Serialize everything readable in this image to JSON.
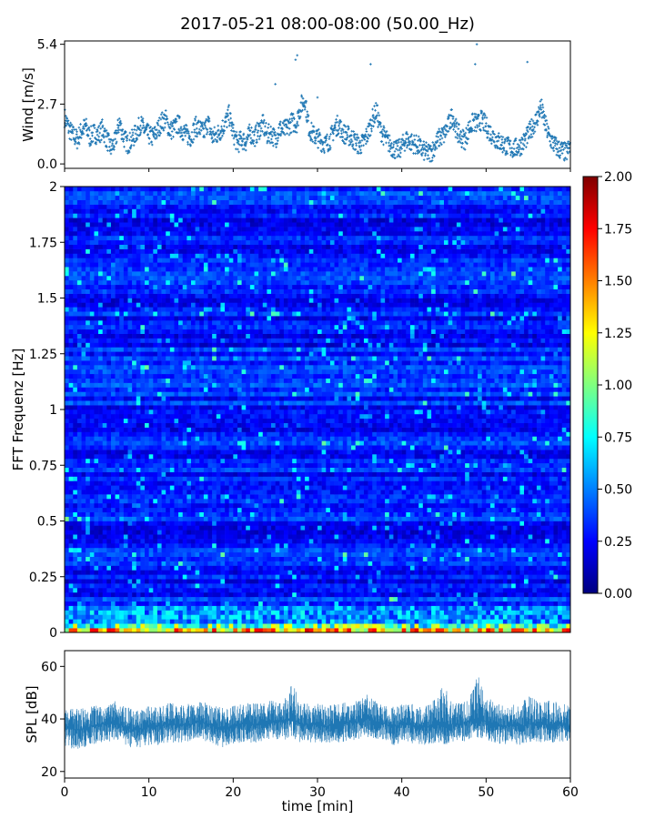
{
  "figure": {
    "title": "2017-05-21 08:00-08:00 (50.00_Hz)"
  },
  "chart_data": [
    {
      "id": "wind",
      "type": "scatter",
      "ylabel": "Wind [m/s]",
      "xlim": [
        0,
        60
      ],
      "ylim": [
        -0.2,
        5.55
      ],
      "yticks": [
        0.0,
        2.7,
        5.4
      ],
      "ytick_labels": [
        "0.0",
        "2.7",
        "5.4"
      ],
      "marker_color": "#1f77b4",
      "x": [
        0,
        0.5,
        1,
        1.5,
        2,
        2.5,
        3,
        3.5,
        4,
        4.5,
        5,
        5.5,
        6,
        6.5,
        7,
        7.5,
        8,
        8.5,
        9,
        9.5,
        10,
        10.5,
        11,
        11.5,
        12,
        12.5,
        13,
        13.5,
        14,
        14.5,
        15,
        15.5,
        16,
        16.5,
        17,
        17.5,
        18,
        18.5,
        19,
        19.5,
        20,
        20.5,
        21,
        21.5,
        22,
        22.5,
        23,
        23.5,
        24,
        24.5,
        25,
        25.5,
        26,
        26.5,
        27,
        27.5,
        28,
        28.5,
        29,
        29.5,
        30,
        30.5,
        31,
        31.5,
        32,
        32.5,
        33,
        33.5,
        34,
        34.5,
        35,
        35.5,
        36,
        36.5,
        37,
        37.5,
        38,
        38.5,
        39,
        39.5,
        40,
        40.5,
        41,
        41.5,
        42,
        42.5,
        43,
        43.5,
        44,
        44.5,
        45,
        45.5,
        46,
        46.5,
        47,
        47.5,
        48,
        48.5,
        49,
        49.5,
        50,
        50.5,
        51,
        51.5,
        52,
        52.5,
        53,
        53.5,
        54,
        54.5,
        55,
        55.5,
        56,
        56.5,
        57,
        57.5,
        58,
        58.5,
        59,
        59.5,
        60
      ],
      "y": [
        2.1,
        1.6,
        1.3,
        1.1,
        1.5,
        1.7,
        1.2,
        1.4,
        1.3,
        1.6,
        1.1,
        0.7,
        1.0,
        1.9,
        1.2,
        0.9,
        1.1,
        1.4,
        1.8,
        1.5,
        1.3,
        1.2,
        1.5,
        1.9,
        2.0,
        1.5,
        1.6,
        1.8,
        1.5,
        1.3,
        1.2,
        1.7,
        1.6,
        1.4,
        1.9,
        1.2,
        1.3,
        1.5,
        1.8,
        2.2,
        1.4,
        0.9,
        1.1,
        1.0,
        1.4,
        1.2,
        1.5,
        1.8,
        1.3,
        1.4,
        1.1,
        1.6,
        1.5,
        1.7,
        1.9,
        1.8,
        2.6,
        2.9,
        1.6,
        1.3,
        1.2,
        1.0,
        0.9,
        1.1,
        1.6,
        1.8,
        1.4,
        1.3,
        1.2,
        1.0,
        0.8,
        1.0,
        1.4,
        2.0,
        2.4,
        1.5,
        1.2,
        0.9,
        0.7,
        0.6,
        0.8,
        1.1,
        1.0,
        0.9,
        0.8,
        0.6,
        0.5,
        0.5,
        0.9,
        1.2,
        1.3,
        1.7,
        2.2,
        1.5,
        1.2,
        1.1,
        1.6,
        1.9,
        1.8,
        2.0,
        1.7,
        1.4,
        1.2,
        1.0,
        0.9,
        0.8,
        0.7,
        0.7,
        0.8,
        1.0,
        1.3,
        1.7,
        2.0,
        2.6,
        1.8,
        1.2,
        0.9,
        0.7,
        0.6,
        0.5,
        0.8
      ]
    },
    {
      "id": "spectrogram",
      "type": "heatmap",
      "ylabel": "FFT Frequenz [Hz]",
      "xlim": [
        0,
        60
      ],
      "ylim": [
        0,
        2
      ],
      "yticks": [
        0,
        0.25,
        0.5,
        0.75,
        1,
        1.25,
        1.5,
        1.75,
        2
      ],
      "ytick_labels": [
        "0",
        "0.25",
        "0.5",
        "0.75",
        "1",
        "1.25",
        "1.5",
        "1.75",
        "2"
      ],
      "colormap": "jet",
      "zlim": [
        0,
        2
      ],
      "colorbar_ticks": [
        0.0,
        0.25,
        0.5,
        0.75,
        1.0,
        1.25,
        1.5,
        1.75,
        2.0
      ],
      "colorbar_tick_labels": [
        "0.00",
        "0.25",
        "0.50",
        "0.75",
        "1.00",
        "1.25",
        "1.50",
        "1.75",
        "2.00"
      ],
      "n_time_bins": 120,
      "n_freq_bins": 100,
      "typical_level": 0.25,
      "low_frequency_level": 1.3
    },
    {
      "id": "spl",
      "type": "line",
      "ylabel": "SPL [dB]",
      "xlabel": "time [min]",
      "xlim": [
        0,
        60
      ],
      "ylim": [
        17.5,
        66
      ],
      "xticks": [
        0,
        10,
        20,
        30,
        40,
        50,
        60
      ],
      "xtick_labels": [
        "0",
        "10",
        "20",
        "30",
        "40",
        "50",
        "60"
      ],
      "yticks": [
        20,
        40,
        60
      ],
      "ytick_labels": [
        "20",
        "40",
        "60"
      ],
      "line_color": "#1f77b4",
      "x": [
        0,
        1,
        2,
        3,
        4,
        5,
        6,
        7,
        8,
        9,
        10,
        11,
        12,
        13,
        14,
        15,
        16,
        17,
        18,
        19,
        20,
        21,
        22,
        23,
        24,
        25,
        26,
        27,
        28,
        29,
        30,
        31,
        32,
        33,
        34,
        35,
        36,
        37,
        38,
        39,
        40,
        41,
        42,
        43,
        44,
        45,
        46,
        47,
        48,
        49,
        50,
        51,
        52,
        53,
        54,
        55,
        56,
        57,
        58,
        59,
        60
      ],
      "center": [
        37,
        36,
        36,
        37,
        38,
        38,
        39,
        37,
        36,
        36,
        37,
        37,
        38,
        38,
        38,
        38,
        39,
        38,
        37,
        36,
        37,
        38,
        38,
        38,
        39,
        39,
        39,
        40,
        38,
        38,
        38,
        37,
        38,
        38,
        39,
        39,
        40,
        39,
        38,
        37,
        38,
        38,
        37,
        37,
        38,
        37,
        38,
        38,
        39,
        40,
        39,
        38,
        37,
        38,
        37,
        38,
        38,
        38,
        38,
        38,
        37
      ],
      "low": [
        30,
        28,
        29,
        30,
        31,
        31,
        32,
        30,
        29,
        29,
        30,
        30,
        31,
        31,
        31,
        31,
        32,
        31,
        30,
        29,
        30,
        31,
        31,
        31,
        32,
        32,
        32,
        33,
        31,
        31,
        31,
        30,
        31,
        31,
        32,
        32,
        33,
        32,
        31,
        30,
        31,
        31,
        30,
        30,
        31,
        30,
        31,
        31,
        32,
        33,
        32,
        31,
        30,
        31,
        30,
        31,
        31,
        31,
        31,
        31,
        30
      ],
      "high": [
        44,
        44,
        44,
        45,
        45,
        45,
        47,
        45,
        44,
        44,
        45,
        45,
        46,
        46,
        46,
        46,
        47,
        46,
        45,
        44,
        45,
        46,
        46,
        46,
        47,
        47,
        47,
        55,
        46,
        46,
        46,
        45,
        46,
        46,
        47,
        47,
        50,
        47,
        46,
        45,
        46,
        46,
        45,
        45,
        48,
        53,
        46,
        46,
        48,
        57,
        48,
        47,
        45,
        46,
        45,
        50,
        47,
        47,
        47,
        46,
        45
      ]
    }
  ]
}
